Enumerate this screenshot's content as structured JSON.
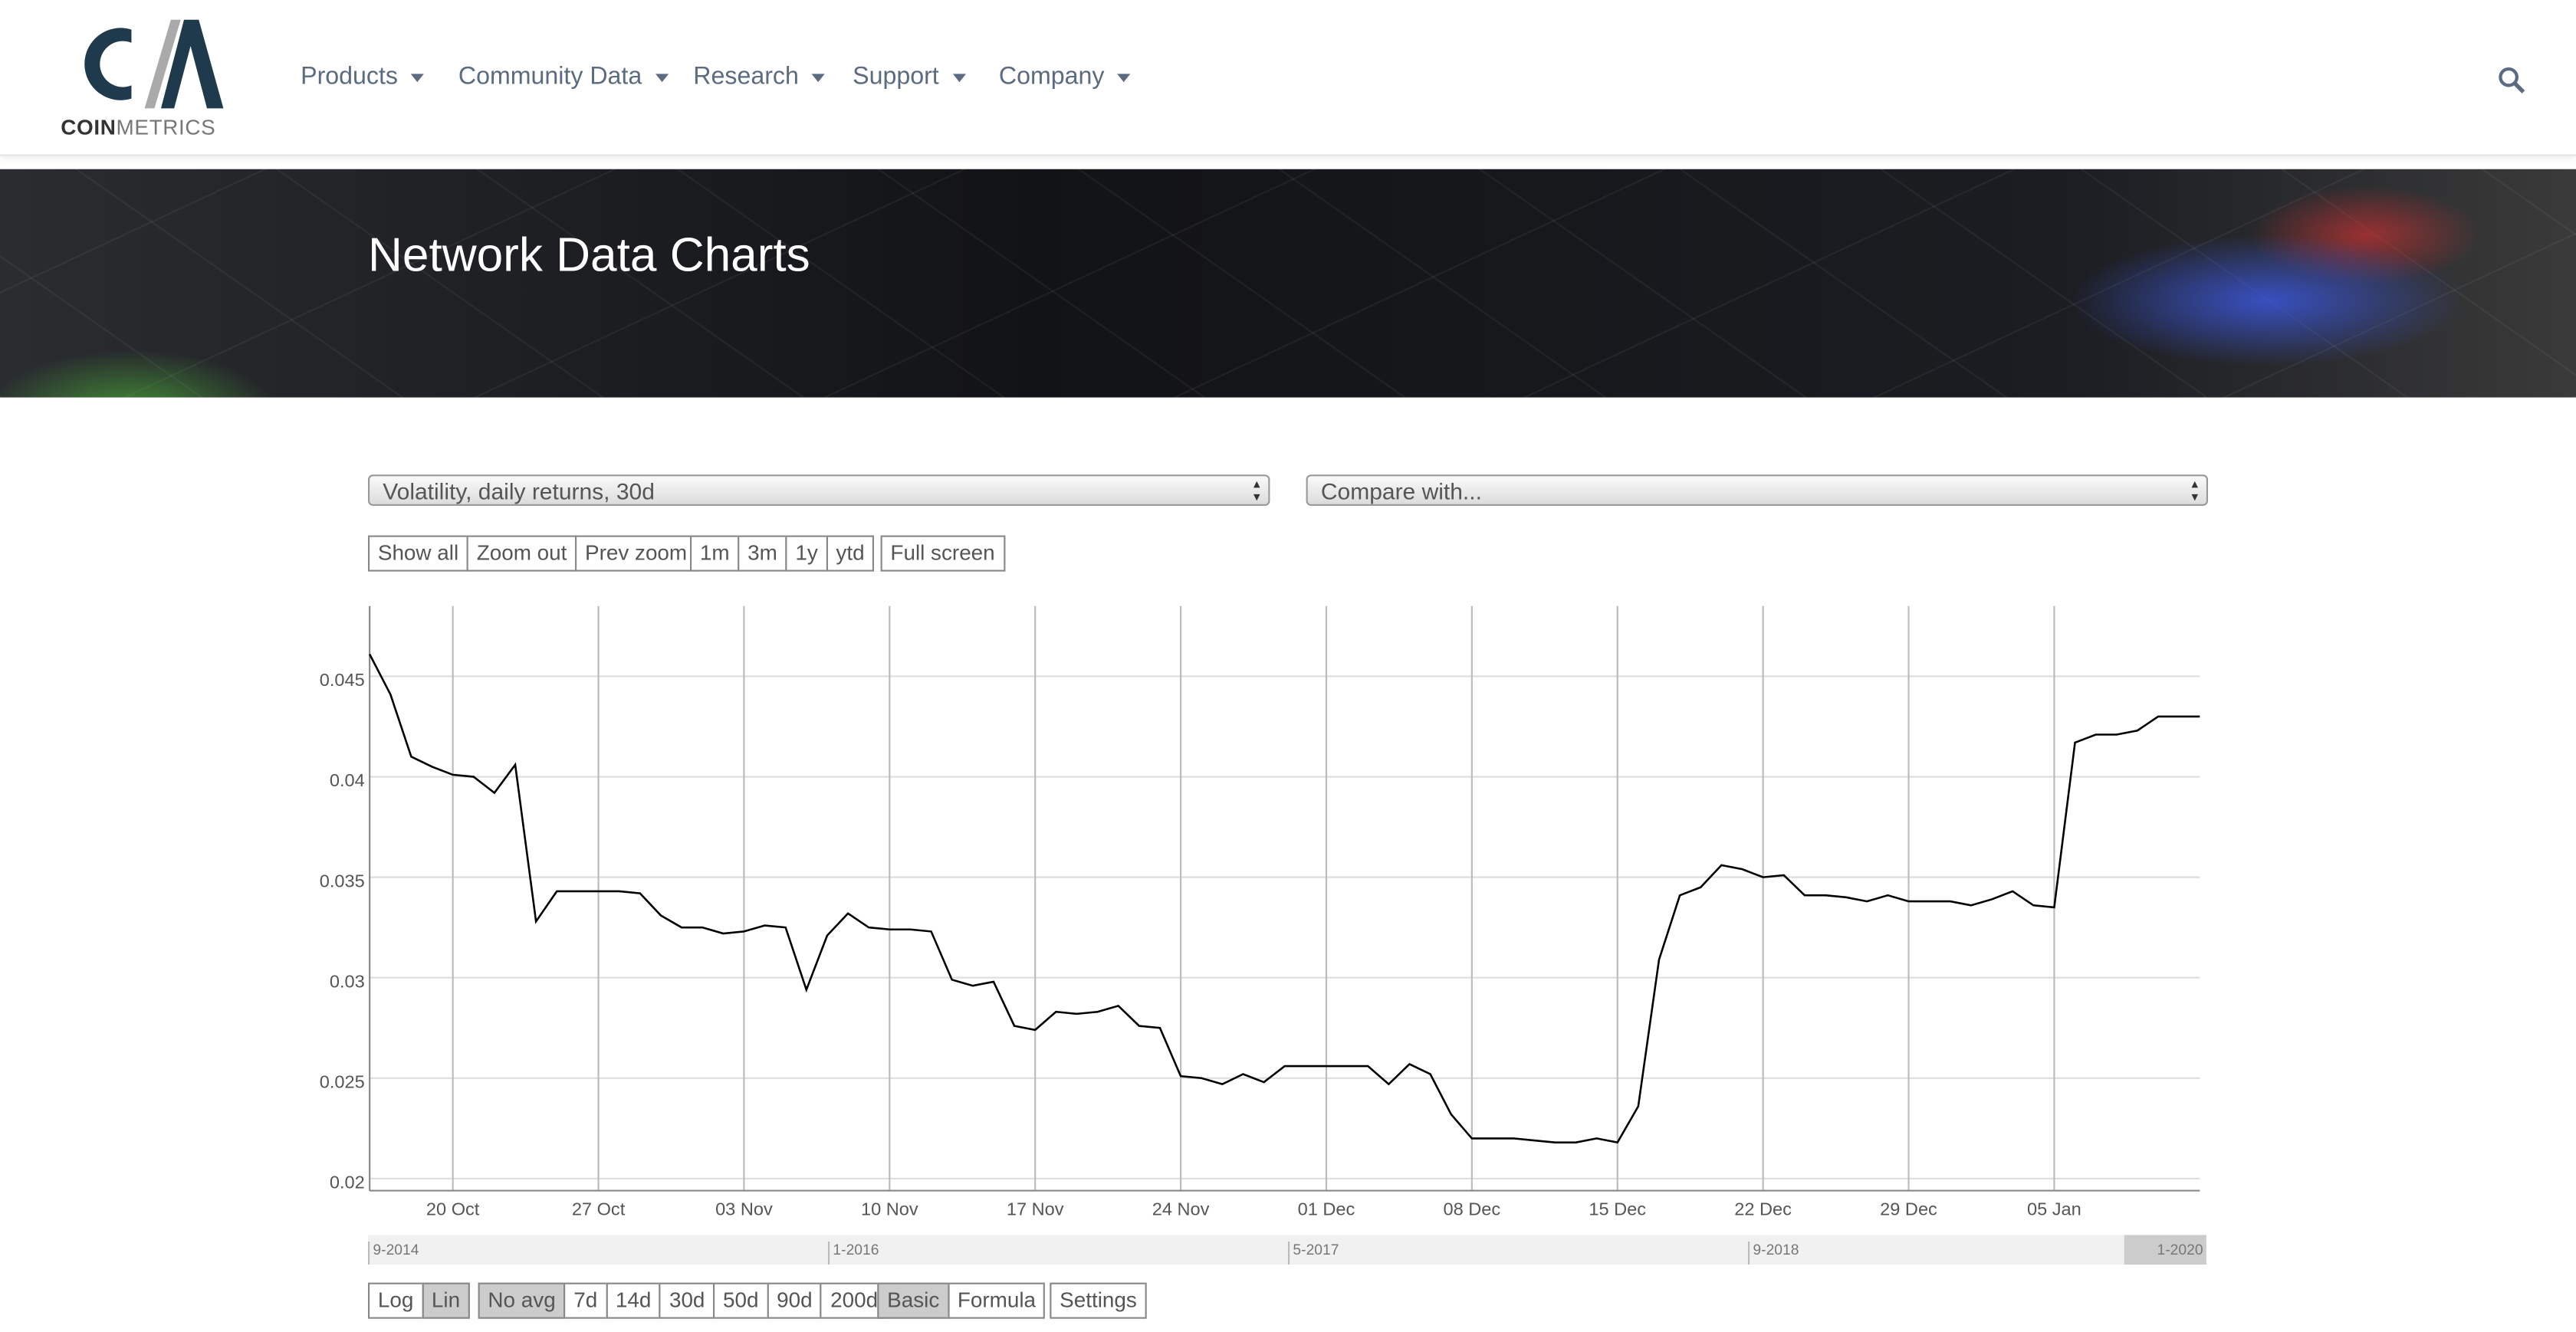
{
  "logo": {
    "primary": "COIN",
    "secondary": "METRICS"
  },
  "nav": [
    "Products",
    "Community Data",
    "Research",
    "Support",
    "Company"
  ],
  "banner_title": "Network Data Charts",
  "metric_select": "Volatility, daily returns, 30d",
  "compare_select": "Compare with...",
  "zoom_buttons": [
    "Show all",
    "Zoom out",
    "Prev zoom"
  ],
  "range_buttons": [
    "1m",
    "3m",
    "1y",
    "ytd"
  ],
  "fullscreen_button": "Full screen",
  "navigator_labels": [
    "9-2014",
    "1-2016",
    "5-2017",
    "9-2018",
    "1-2020"
  ],
  "scale_buttons": [
    "Log",
    "Lin"
  ],
  "average_buttons": [
    "No avg",
    "7d",
    "14d",
    "30d",
    "50d",
    "90d",
    "200d"
  ],
  "mode_buttons": [
    "Basic",
    "Formula"
  ],
  "settings_button": "Settings",
  "chart_data": {
    "type": "line",
    "color": "#000000",
    "grid": true,
    "x": [
      "16 Oct",
      "17 Oct",
      "18 Oct",
      "19 Oct",
      "20 Oct",
      "21 Oct",
      "22 Oct",
      "23 Oct",
      "24 Oct",
      "25 Oct",
      "26 Oct",
      "27 Oct",
      "28 Oct",
      "29 Oct",
      "30 Oct",
      "31 Oct",
      "01 Nov",
      "02 Nov",
      "03 Nov",
      "04 Nov",
      "05 Nov",
      "06 Nov",
      "07 Nov",
      "08 Nov",
      "09 Nov",
      "10 Nov",
      "11 Nov",
      "12 Nov",
      "13 Nov",
      "14 Nov",
      "15 Nov",
      "16 Nov",
      "17 Nov",
      "18 Nov",
      "19 Nov",
      "20 Nov",
      "21 Nov",
      "22 Nov",
      "23 Nov",
      "24 Nov",
      "25 Nov",
      "26 Nov",
      "27 Nov",
      "28 Nov",
      "29 Nov",
      "30 Nov",
      "01 Dec",
      "02 Dec",
      "03 Dec",
      "04 Dec",
      "05 Dec",
      "06 Dec",
      "07 Dec",
      "08 Dec",
      "09 Dec",
      "10 Dec",
      "11 Dec",
      "12 Dec",
      "13 Dec",
      "14 Dec",
      "15 Dec",
      "16 Dec",
      "17 Dec",
      "18 Dec",
      "19 Dec",
      "20 Dec",
      "21 Dec",
      "22 Dec",
      "23 Dec",
      "24 Dec",
      "25 Dec",
      "26 Dec",
      "27 Dec",
      "28 Dec",
      "29 Dec",
      "30 Dec",
      "31 Dec",
      "01 Jan",
      "02 Jan",
      "03 Jan",
      "04 Jan",
      "05 Jan",
      "06 Jan",
      "07 Jan",
      "08 Jan",
      "09 Jan",
      "10 Jan",
      "11 Jan",
      "12 Jan"
    ],
    "values": [
      0.0461,
      0.0441,
      0.041,
      0.0405,
      0.0401,
      0.04,
      0.0392,
      0.0406,
      0.0328,
      0.0343,
      0.0343,
      0.0343,
      0.0343,
      0.0342,
      0.0331,
      0.0325,
      0.0325,
      0.0322,
      0.0323,
      0.0326,
      0.0325,
      0.0294,
      0.0321,
      0.0332,
      0.0325,
      0.0324,
      0.0324,
      0.0323,
      0.0299,
      0.0296,
      0.0298,
      0.0276,
      0.0274,
      0.0283,
      0.0282,
      0.0283,
      0.0286,
      0.0276,
      0.0275,
      0.0251,
      0.025,
      0.0247,
      0.0252,
      0.0248,
      0.0256,
      0.0256,
      0.0256,
      0.0256,
      0.0256,
      0.0247,
      0.0257,
      0.0252,
      0.0232,
      0.022,
      0.022,
      0.022,
      0.0219,
      0.0218,
      0.0218,
      0.022,
      0.0218,
      0.0236,
      0.0309,
      0.0341,
      0.0345,
      0.0356,
      0.0354,
      0.035,
      0.0351,
      0.0341,
      0.0341,
      0.034,
      0.0338,
      0.0341,
      0.0338,
      0.0338,
      0.0338,
      0.0336,
      0.0339,
      0.0343,
      0.0336,
      0.0335,
      0.0417,
      0.0421,
      0.0421,
      0.0423,
      0.043,
      0.043,
      0.043
    ],
    "xticks": [
      "20 Oct",
      "27 Oct",
      "03 Nov",
      "10 Nov",
      "17 Nov",
      "24 Nov",
      "01 Dec",
      "08 Dec",
      "15 Dec",
      "22 Dec",
      "29 Dec",
      "05 Jan"
    ],
    "ylim": [
      0.0194,
      0.0485
    ],
    "yticks": [
      0.02,
      0.025,
      0.03,
      0.035,
      0.04,
      0.045
    ]
  }
}
